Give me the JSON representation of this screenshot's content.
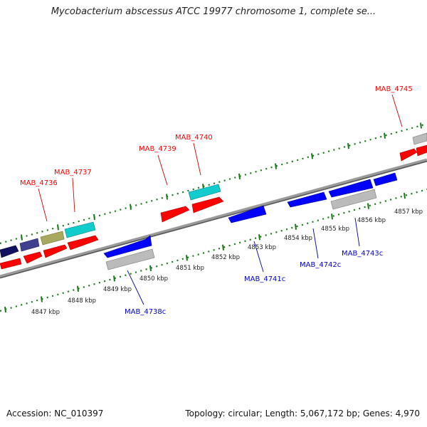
{
  "title": "Mycobacterium abscessus ATCC 19977 chromosome 1, complete se...",
  "accession": "Accession: NC_010397",
  "summary": "Topology: circular; Length: 5,067,172 bp; Genes: 4,970",
  "colors": {
    "forward_label": "#ff0000",
    "reverse_label": "#0000cc",
    "scale_dots": "#1a7a1a",
    "backbone": "#808080",
    "gene_red": "#ff0000",
    "gene_blue": "#0000ff",
    "gene_cyan": "#11cccc",
    "gene_gray": "#bbbbbb",
    "gene_navy": "#101060",
    "gene_slate": "#404090",
    "gene_olive": "#a8a860"
  },
  "kbp_labels": [
    "4847 kbp",
    "4848 kbp",
    "4849 kbp",
    "4850 kbp",
    "4851 kbp",
    "4852 kbp",
    "4853 kbp",
    "4854 kbp",
    "4855 kbp",
    "4856 kbp",
    "4857 kbp"
  ],
  "forward_gene_labels": [
    "MAB_4736",
    "MAB_4737",
    "MAB_4739",
    "MAB_4740",
    "MAB_4745"
  ],
  "reverse_gene_labels": [
    "MAB_4738c",
    "MAB_4741c",
    "MAB_4742c",
    "MAB_4743c"
  ]
}
